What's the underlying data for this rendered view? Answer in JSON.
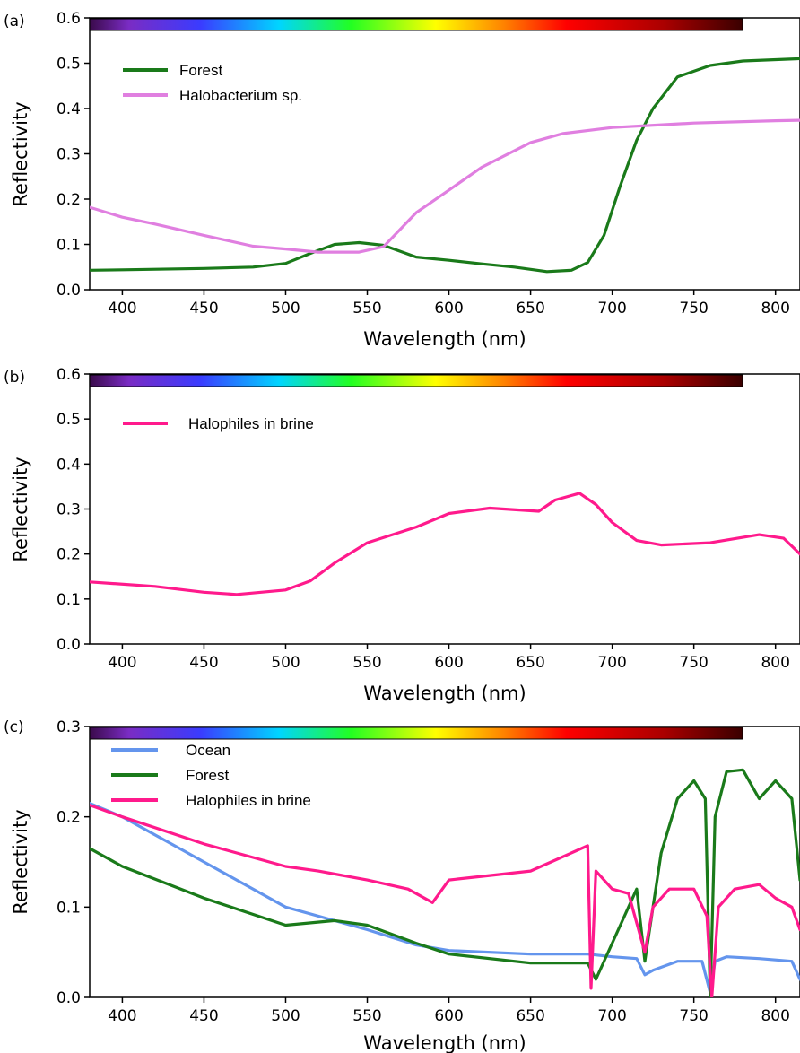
{
  "chart_data": [
    {
      "type": "line",
      "panel_label": "(a)",
      "xlabel": "Wavelength (nm)",
      "ylabel": "Reflectivity",
      "xlim": [
        380,
        815
      ],
      "ylim": [
        0,
        0.6
      ],
      "xticks": [
        400,
        450,
        500,
        550,
        600,
        650,
        700,
        750,
        800
      ],
      "yticks": [
        "0.0",
        "0.1",
        "0.2",
        "0.3",
        "0.4",
        "0.5",
        "0.6"
      ],
      "spectrum_bar": true,
      "legend_position": "top-left",
      "series": [
        {
          "name": "Forest",
          "color": "#1a7a1a",
          "x": [
            380,
            400,
            450,
            480,
            500,
            515,
            530,
            545,
            560,
            580,
            600,
            620,
            640,
            660,
            675,
            685,
            695,
            705,
            715,
            725,
            740,
            760,
            780,
            815
          ],
          "y": [
            0.043,
            0.044,
            0.047,
            0.05,
            0.058,
            0.08,
            0.1,
            0.104,
            0.098,
            0.072,
            0.065,
            0.057,
            0.05,
            0.04,
            0.043,
            0.06,
            0.12,
            0.23,
            0.33,
            0.4,
            0.47,
            0.495,
            0.505,
            0.51
          ]
        },
        {
          "name": "Halobacterium sp.",
          "color": "#e07fe0",
          "x": [
            380,
            400,
            420,
            450,
            480,
            500,
            520,
            545,
            560,
            580,
            600,
            620,
            650,
            670,
            700,
            750,
            800,
            815
          ],
          "y": [
            0.182,
            0.16,
            0.145,
            0.12,
            0.096,
            0.09,
            0.083,
            0.083,
            0.095,
            0.17,
            0.22,
            0.27,
            0.325,
            0.345,
            0.358,
            0.368,
            0.373,
            0.374
          ]
        }
      ]
    },
    {
      "type": "line",
      "panel_label": "(b)",
      "xlabel": "Wavelength (nm)",
      "ylabel": "Reflectivity",
      "xlim": [
        380,
        815
      ],
      "ylim": [
        0,
        0.6
      ],
      "xticks": [
        400,
        450,
        500,
        550,
        600,
        650,
        700,
        750,
        800
      ],
      "yticks": [
        "0.0",
        "0.1",
        "0.2",
        "0.3",
        "0.4",
        "0.5",
        "0.6"
      ],
      "spectrum_bar": true,
      "legend_position": "top-left",
      "series": [
        {
          "name": "Halophiles in brine",
          "color": "#ff1a8c",
          "x": [
            380,
            420,
            450,
            470,
            500,
            515,
            530,
            550,
            580,
            600,
            625,
            655,
            665,
            680,
            690,
            700,
            715,
            730,
            760,
            790,
            805,
            815
          ],
          "y": [
            0.138,
            0.128,
            0.115,
            0.11,
            0.12,
            0.14,
            0.18,
            0.225,
            0.26,
            0.29,
            0.302,
            0.295,
            0.32,
            0.335,
            0.31,
            0.27,
            0.23,
            0.22,
            0.225,
            0.243,
            0.235,
            0.2
          ]
        }
      ]
    },
    {
      "type": "line",
      "panel_label": "(c)",
      "xlabel": "Wavelength (nm)",
      "ylabel": "Reflectivity",
      "xlim": [
        380,
        815
      ],
      "ylim": [
        0,
        0.3
      ],
      "xticks": [
        400,
        450,
        500,
        550,
        600,
        650,
        700,
        750,
        800
      ],
      "yticks": [
        "0.0",
        "0.1",
        "0.2",
        "0.3"
      ],
      "spectrum_bar": true,
      "legend_position": "top-left",
      "series": [
        {
          "name": "Ocean",
          "color": "#6495ed",
          "x": [
            380,
            400,
            450,
            500,
            550,
            580,
            600,
            650,
            685,
            700,
            715,
            720,
            725,
            740,
            755,
            760,
            763,
            770,
            790,
            810,
            815
          ],
          "y": [
            0.215,
            0.2,
            0.15,
            0.1,
            0.075,
            0.058,
            0.052,
            0.048,
            0.048,
            0.045,
            0.043,
            0.025,
            0.03,
            0.04,
            0.04,
            0.005,
            0.04,
            0.045,
            0.043,
            0.04,
            0.02
          ]
        },
        {
          "name": "Forest",
          "color": "#1a7a1a",
          "x": [
            380,
            400,
            450,
            500,
            530,
            550,
            580,
            600,
            650,
            685,
            690,
            700,
            715,
            720,
            730,
            740,
            750,
            757,
            760,
            763,
            770,
            780,
            790,
            800,
            810,
            815
          ],
          "y": [
            0.165,
            0.145,
            0.11,
            0.08,
            0.085,
            0.08,
            0.06,
            0.048,
            0.038,
            0.038,
            0.02,
            0.06,
            0.12,
            0.04,
            0.16,
            0.22,
            0.24,
            0.22,
            0.0,
            0.2,
            0.25,
            0.252,
            0.22,
            0.24,
            0.22,
            0.13
          ]
        },
        {
          "name": "Halophiles in brine",
          "color": "#ff1a8c",
          "x": [
            380,
            400,
            450,
            500,
            520,
            550,
            575,
            590,
            600,
            625,
            650,
            685,
            687,
            690,
            700,
            710,
            720,
            725,
            735,
            750,
            758,
            761,
            765,
            775,
            790,
            800,
            810,
            815
          ],
          "y": [
            0.213,
            0.2,
            0.17,
            0.145,
            0.14,
            0.13,
            0.12,
            0.105,
            0.13,
            0.135,
            0.14,
            0.168,
            0.01,
            0.14,
            0.12,
            0.115,
            0.05,
            0.1,
            0.12,
            0.12,
            0.09,
            0.0,
            0.1,
            0.12,
            0.125,
            0.11,
            0.1,
            0.075
          ]
        }
      ]
    }
  ]
}
